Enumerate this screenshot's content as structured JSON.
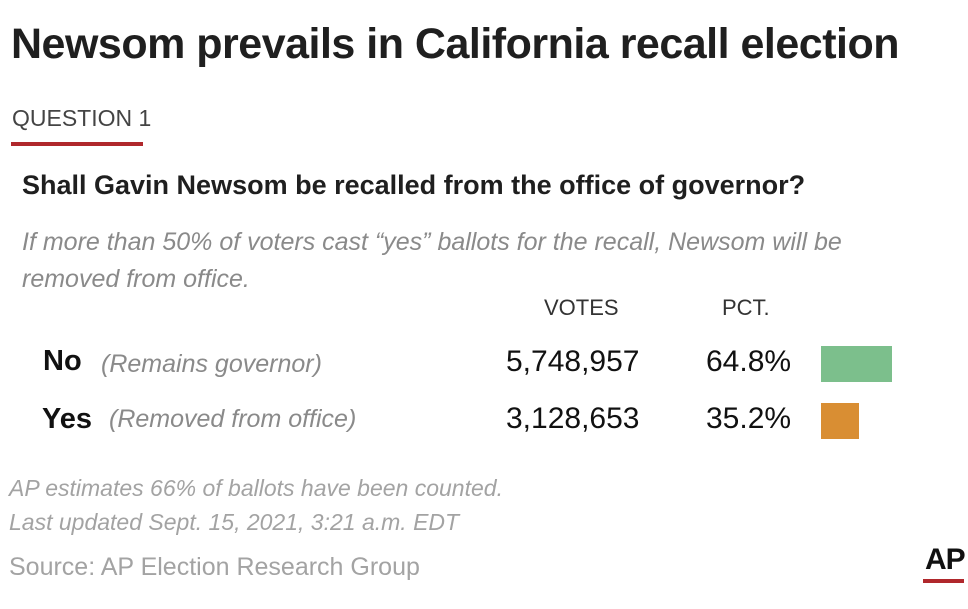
{
  "header": {
    "title": "Newsom prevails in California recall election",
    "question_label": "QUESTION 1"
  },
  "question": {
    "text": "Shall Gavin Newsom be recalled from the office of governor?",
    "explainer": "If more than 50% of voters cast “yes” ballots for the recall, Newsom will be removed from office."
  },
  "columns": {
    "votes": "VOTES",
    "pct": "PCT."
  },
  "chart_data": {
    "type": "bar",
    "orientation": "horizontal",
    "categories": [
      "No",
      "Yes"
    ],
    "descriptions": [
      "(Remains governor)",
      "(Removed from office)"
    ],
    "votes_display": [
      "5,748,957",
      "3,128,653"
    ],
    "pct_display": [
      "64.8%",
      "35.2%"
    ],
    "votes": [
      5748957,
      3128653
    ],
    "values": [
      64.8,
      35.2
    ],
    "colors": [
      "#7cbf8c",
      "#d98e33"
    ],
    "xlim": [
      0,
      100
    ]
  },
  "footer": {
    "note_estimate": "AP estimates 66% of ballots have been counted.",
    "note_updated": "Last updated Sept. 15, 2021, 3:21 a.m. EDT",
    "source": "Source: AP Election Research Group",
    "logo": "AP"
  }
}
